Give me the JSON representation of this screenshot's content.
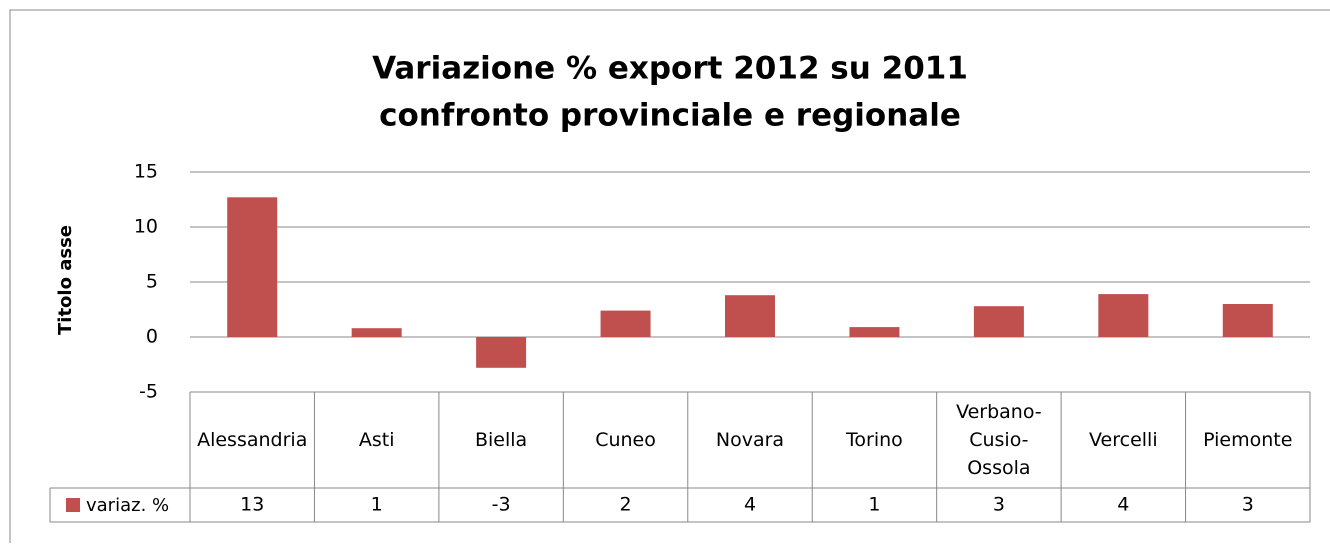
{
  "chart_data": {
    "type": "bar",
    "title": [
      "Variazione % export 2012 su 2011",
      "confronto provinciale e regionale"
    ],
    "y_label": "Titolo asse",
    "categories": [
      "Alessandria",
      "Asti",
      "Biella",
      "Cuneo",
      "Novara",
      "Torino",
      "Verbano-Cusio-Ossola",
      "Vercelli",
      "Piemonte"
    ],
    "series": [
      {
        "name": "variaz. %",
        "color": "#c0504d",
        "values": [
          12.7,
          0.8,
          -2.8,
          2.4,
          3.8,
          0.9,
          2.8,
          3.9,
          3.0
        ],
        "value_labels": [
          "13",
          "1",
          "-3",
          "2",
          "4",
          "1",
          "3",
          "4",
          "3"
        ]
      }
    ],
    "ylim": [
      -5,
      15
    ],
    "yticks": [
      15,
      10,
      5,
      0,
      -5
    ],
    "grid": true,
    "negative_tick_color": "#ff0000",
    "data_table": true
  }
}
